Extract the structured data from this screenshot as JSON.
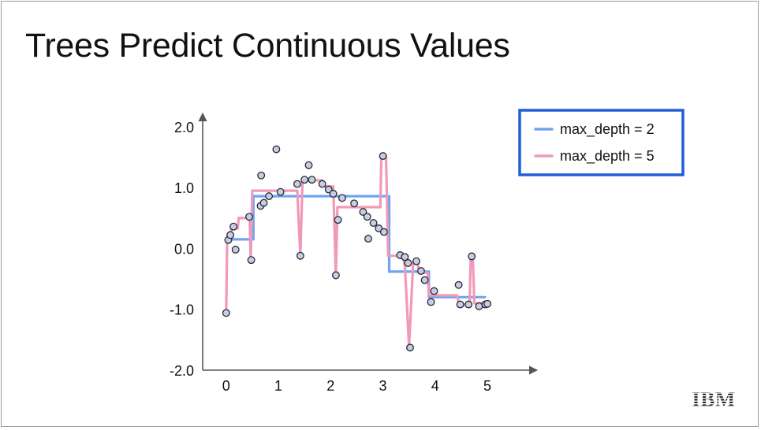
{
  "slide": {
    "title": "Trees Predict Continuous Values",
    "logo_text": "IBM"
  },
  "chart_data": {
    "type": "line",
    "title": "",
    "xlabel": "",
    "ylabel": "",
    "xlim": [
      -0.45,
      5.95
    ],
    "ylim": [
      -2.0,
      2.22
    ],
    "x_ticks": [
      {
        "value": 0,
        "label": "0"
      },
      {
        "value": 1,
        "label": "1"
      },
      {
        "value": 2,
        "label": "2"
      },
      {
        "value": 3,
        "label": "3"
      },
      {
        "value": 4,
        "label": "4"
      },
      {
        "value": 5,
        "label": "5"
      }
    ],
    "y_ticks": [
      {
        "value": 2,
        "label": "2.0"
      },
      {
        "value": 1,
        "label": "1.0"
      },
      {
        "value": 0,
        "label": "0.0"
      },
      {
        "value": -1,
        "label": "-1.0"
      },
      {
        "value": -2,
        "label": "-2.0"
      }
    ],
    "grid": false,
    "legend_position": "top-right",
    "legend_border_color": "#1f5ed8",
    "scatter_style": {
      "fill": "#c5cde8",
      "stroke": "#2a2a2a"
    },
    "scatter": [
      [
        0.0,
        -1.06
      ],
      [
        0.04,
        0.14
      ],
      [
        0.08,
        0.22
      ],
      [
        0.14,
        0.36
      ],
      [
        0.18,
        -0.02
      ],
      [
        0.44,
        0.52
      ],
      [
        0.48,
        -0.19
      ],
      [
        0.66,
        0.7
      ],
      [
        0.67,
        1.2
      ],
      [
        0.72,
        0.75
      ],
      [
        0.82,
        0.86
      ],
      [
        0.96,
        1.63
      ],
      [
        1.04,
        0.93
      ],
      [
        1.36,
        1.06
      ],
      [
        1.42,
        -0.12
      ],
      [
        1.5,
        1.13
      ],
      [
        1.58,
        1.37
      ],
      [
        1.64,
        1.13
      ],
      [
        1.84,
        1.06
      ],
      [
        1.96,
        0.97
      ],
      [
        2.05,
        0.9
      ],
      [
        2.1,
        -0.44
      ],
      [
        2.14,
        0.47
      ],
      [
        2.22,
        0.83
      ],
      [
        2.45,
        0.74
      ],
      [
        2.62,
        0.6
      ],
      [
        2.7,
        0.52
      ],
      [
        2.72,
        0.16
      ],
      [
        2.82,
        0.42
      ],
      [
        2.92,
        0.33
      ],
      [
        3.02,
        0.27
      ],
      [
        3.0,
        1.52
      ],
      [
        3.33,
        -0.11
      ],
      [
        3.42,
        -0.14
      ],
      [
        3.48,
        -0.24
      ],
      [
        3.52,
        -1.63
      ],
      [
        3.64,
        -0.21
      ],
      [
        3.73,
        -0.37
      ],
      [
        3.8,
        -0.52
      ],
      [
        3.92,
        -0.88
      ],
      [
        3.98,
        -0.7
      ],
      [
        4.45,
        -0.6
      ],
      [
        4.48,
        -0.92
      ],
      [
        4.64,
        -0.92
      ],
      [
        4.7,
        -0.13
      ],
      [
        4.84,
        -0.95
      ],
      [
        4.96,
        -0.92
      ],
      [
        5.0,
        -0.91
      ]
    ],
    "series": [
      {
        "name": "max_depth = 2",
        "color": "#6ea5f2",
        "points": [
          [
            0.0,
            0.15
          ],
          [
            0.52,
            0.15
          ],
          [
            0.52,
            0.86
          ],
          [
            3.12,
            0.86
          ],
          [
            3.12,
            -0.38
          ],
          [
            3.88,
            -0.38
          ],
          [
            3.88,
            -0.8
          ],
          [
            4.95,
            -0.8
          ]
        ]
      },
      {
        "name": "max_depth = 5",
        "color": "#f199b8",
        "points": [
          [
            0.0,
            -1.06
          ],
          [
            0.02,
            0.18
          ],
          [
            0.08,
            0.2
          ],
          [
            0.1,
            0.33
          ],
          [
            0.22,
            0.33
          ],
          [
            0.24,
            0.5
          ],
          [
            0.43,
            0.5
          ],
          [
            0.45,
            0.54
          ],
          [
            0.47,
            -0.19
          ],
          [
            0.5,
            0.95
          ],
          [
            1.36,
            0.95
          ],
          [
            1.42,
            -0.12
          ],
          [
            1.46,
            1.09
          ],
          [
            1.52,
            1.12
          ],
          [
            1.84,
            1.12
          ],
          [
            1.88,
            1.02
          ],
          [
            2.05,
            1.02
          ],
          [
            2.1,
            -0.44
          ],
          [
            2.13,
            0.68
          ],
          [
            2.95,
            0.68
          ],
          [
            2.97,
            1.52
          ],
          [
            3.06,
            1.52
          ],
          [
            3.1,
            -0.12
          ],
          [
            3.38,
            -0.12
          ],
          [
            3.42,
            -0.28
          ],
          [
            3.5,
            -1.62
          ],
          [
            3.58,
            -0.22
          ],
          [
            3.66,
            -0.22
          ],
          [
            3.7,
            -0.4
          ],
          [
            3.86,
            -0.4
          ],
          [
            3.88,
            -0.77
          ],
          [
            4.42,
            -0.77
          ],
          [
            4.46,
            -0.92
          ],
          [
            4.66,
            -0.92
          ],
          [
            4.68,
            -0.13
          ],
          [
            4.72,
            -0.13
          ],
          [
            4.75,
            -0.9
          ],
          [
            4.98,
            -0.9
          ]
        ]
      }
    ]
  }
}
